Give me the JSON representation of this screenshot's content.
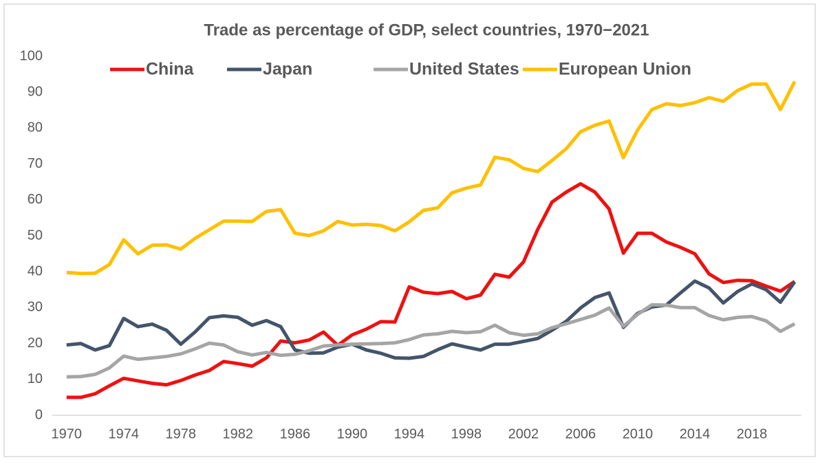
{
  "chart_data": {
    "type": "line",
    "title": "Trade as percentage of GDP, select countries, 1970−2021",
    "x": [
      1970,
      1971,
      1972,
      1973,
      1974,
      1975,
      1976,
      1977,
      1978,
      1979,
      1980,
      1981,
      1982,
      1983,
      1984,
      1985,
      1986,
      1987,
      1988,
      1989,
      1990,
      1991,
      1992,
      1993,
      1994,
      1995,
      1996,
      1997,
      1998,
      1999,
      2000,
      2001,
      2002,
      2003,
      2004,
      2005,
      2006,
      2007,
      2008,
      2009,
      2010,
      2011,
      2012,
      2013,
      2014,
      2015,
      2016,
      2017,
      2018,
      2019,
      2020,
      2021
    ],
    "series": [
      {
        "name": "China",
        "color": "#ee1111",
        "values": [
          5,
          5,
          6,
          8.2,
          10.3,
          9.6,
          8.9,
          8.5,
          9.7,
          11.2,
          12.5,
          15,
          14.4,
          13.7,
          16,
          20.7,
          20.2,
          21,
          23.2,
          19.5,
          22.4,
          24,
          26.1,
          26,
          35.8,
          34.3,
          33.9,
          34.5,
          32.5,
          33.5,
          39.3,
          38.5,
          42.7,
          51.8,
          59.4,
          62.2,
          64.5,
          62.2,
          57.5,
          45.2,
          50.7,
          50.7,
          48.3,
          46.8,
          45,
          39.4,
          37,
          37.6,
          37.5,
          36,
          34.6,
          37.3
        ]
      },
      {
        "name": "Japan",
        "color": "#44546a",
        "values": [
          19.6,
          20,
          18.2,
          19.4,
          27,
          24.7,
          25.4,
          23.7,
          19.8,
          23.2,
          27.2,
          27.7,
          27.3,
          25.1,
          26.4,
          24.7,
          18.2,
          17.3,
          17.4,
          19,
          19.8,
          18.2,
          17.3,
          16,
          15.9,
          16.4,
          18.3,
          19.9,
          19,
          18.2,
          19.8,
          19.8,
          20.6,
          21.4,
          23.7,
          26.2,
          29.9,
          32.8,
          34.1,
          24.5,
          28.4,
          30.2,
          30.7,
          34.1,
          37.4,
          35.5,
          31.3,
          34.5,
          36.6,
          35,
          31.5,
          37.2
        ]
      },
      {
        "name": "United States",
        "color": "#a5a5a5",
        "values": [
          10.7,
          10.8,
          11.4,
          13.2,
          16.5,
          15.6,
          16,
          16.4,
          17.1,
          18.5,
          20.1,
          19.6,
          17.7,
          16.8,
          17.5,
          16.7,
          17,
          18,
          19.3,
          19.6,
          19.8,
          19.9,
          20,
          20.2,
          21.1,
          22.4,
          22.7,
          23.4,
          23,
          23.3,
          25.1,
          23,
          22.3,
          22.7,
          24.4,
          25.5,
          26.7,
          27.9,
          29.9,
          24.8,
          28.1,
          30.8,
          30.7,
          30,
          30,
          27.8,
          26.6,
          27.3,
          27.5,
          26.3,
          23.4,
          25.5
        ]
      },
      {
        "name": "European Union",
        "color": "#ffc000",
        "values": [
          39.8,
          39.5,
          39.6,
          42,
          48.9,
          45,
          47.4,
          47.5,
          46.3,
          49.3,
          51.7,
          54.1,
          54.1,
          54,
          56.8,
          57.3,
          50.7,
          50.1,
          51.4,
          54,
          53,
          53.2,
          52.9,
          51.4,
          53.9,
          57.1,
          57.8,
          62,
          63.3,
          64.2,
          71.9,
          71.2,
          68.8,
          67.9,
          71,
          74.3,
          79,
          80.8,
          82,
          71.8,
          79.5,
          85.2,
          86.8,
          86.3,
          87.1,
          88.5,
          87.5,
          90.5,
          92.3,
          92.3,
          85.2,
          93
        ]
      }
    ],
    "xlim": [
      1969,
      2022
    ],
    "xticks": [
      1970,
      1974,
      1978,
      1982,
      1986,
      1990,
      1994,
      1998,
      2002,
      2006,
      2010,
      2014,
      2018
    ],
    "ylim": [
      0,
      100
    ],
    "yticks": [
      0,
      10,
      20,
      30,
      40,
      50,
      60,
      70,
      80,
      90,
      100
    ],
    "grid": false
  }
}
